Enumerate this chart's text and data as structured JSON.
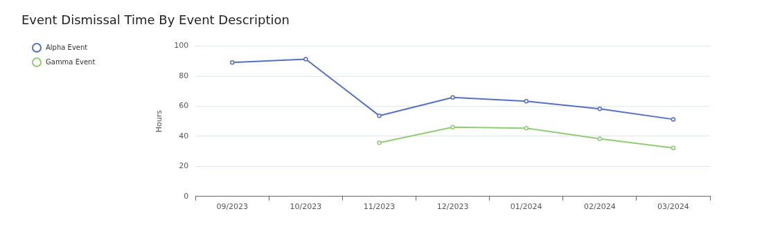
{
  "chart_data": {
    "type": "line",
    "title": "Event Dismissal Time By Event Description",
    "ylabel": "Hours",
    "categories": [
      "09/2023",
      "10/2023",
      "11/2023",
      "12/2023",
      "01/2024",
      "02/2024",
      "03/2024"
    ],
    "series": [
      {
        "name": "Alpha Event",
        "color": "#5470c6",
        "values": [
          89.1,
          91.3,
          53.7,
          65.9,
          63.3,
          58.3,
          51.3
        ]
      },
      {
        "name": "Gamma Event",
        "color": "#91cc75",
        "values": [
          null,
          null,
          35.7,
          46.1,
          45.4,
          38.3,
          32.2
        ]
      }
    ],
    "ylim": [
      0,
      100
    ],
    "yticks": [
      0,
      20,
      40,
      60,
      80,
      100
    ],
    "grid": "y",
    "legend": "left",
    "marker": "circle"
  }
}
